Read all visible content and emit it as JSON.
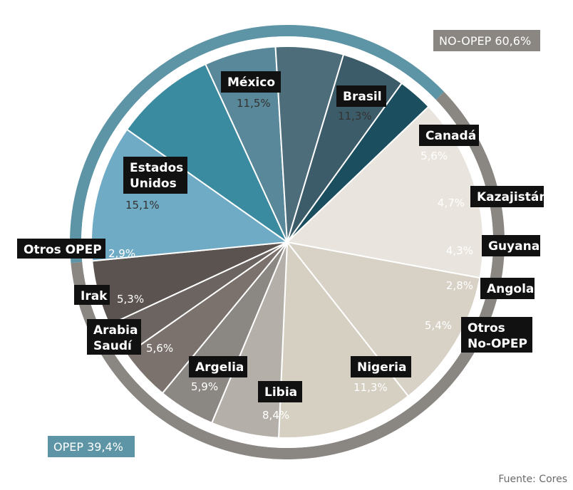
{
  "chart_data": {
    "type": "pie",
    "groups": [
      {
        "label": "NO-OPEP 60,6%",
        "color": "#8a8682"
      },
      {
        "label": "OPEP 39,4%",
        "color": "#5e95a6"
      }
    ],
    "slices": [
      {
        "name": "México",
        "value": 11.5,
        "display": "11,5%",
        "color": "#d7d1c6",
        "group": 0
      },
      {
        "name": "Brasil",
        "value": 11.3,
        "display": "11,3%",
        "color": "#d6d0c2",
        "group": 0
      },
      {
        "name": "Canadá",
        "value": 5.6,
        "display": "5,6%",
        "color": "#b4afa8",
        "group": 0
      },
      {
        "name": "Kazajistán",
        "value": 4.7,
        "display": "4,7%",
        "color": "#8b8782",
        "group": 0
      },
      {
        "name": "Guyana",
        "value": 4.3,
        "display": "4,3%",
        "color": "#7b726d",
        "group": 0
      },
      {
        "name": "Angola",
        "value": 2.8,
        "display": "2,8%",
        "color": "#6b6460",
        "group": 0
      },
      {
        "name": "Otros No-OPEP",
        "value": 5.4,
        "display": "5,4%",
        "color": "#5a5350",
        "group": 0
      },
      {
        "name": "Nigeria",
        "value": 11.3,
        "display": "11,3%",
        "color": "#70abc5",
        "group": 1
      },
      {
        "name": "Libia",
        "value": 8.4,
        "display": "8,4%",
        "color": "#3b8ba0",
        "group": 1
      },
      {
        "name": "Argelia",
        "value": 5.9,
        "display": "5,9%",
        "color": "#588899",
        "group": 1
      },
      {
        "name": "Arabia Saudí",
        "value": 5.6,
        "display": "5,6%",
        "color": "#4d6d7b",
        "group": 1
      },
      {
        "name": "Irak",
        "value": 5.3,
        "display": "5,3%",
        "color": "#3d5c69",
        "group": 1
      },
      {
        "name": "Otros OPEP",
        "value": 2.9,
        "display": "2,9%",
        "color": "#1b4e5e",
        "group": 1
      },
      {
        "name": "Estados Unidos",
        "value": 15.1,
        "display": "15,1%",
        "color": "#e9e5de",
        "group": 0
      }
    ],
    "source": "Fuente: Cores"
  }
}
